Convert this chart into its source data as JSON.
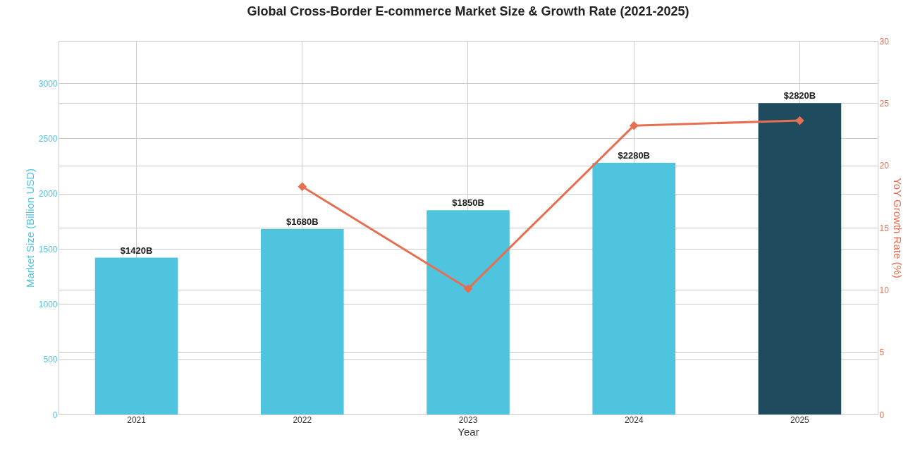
{
  "chart_data": {
    "type": "bar",
    "title": "Global Cross-Border E-commerce Market Size & Growth Rate (2021-2025)",
    "xlabel": "Year",
    "ylabel": "Market Size (Billion USD)",
    "y2label": "YoY Growth Rate (%)",
    "categories": [
      "2021",
      "2022",
      "2023",
      "2024",
      "2025"
    ],
    "series": [
      {
        "colors": [
          "#4fc4df",
          "#4fc4df",
          "#4fc4df",
          "#4fc4df",
          "#1f4b5e"
        ],
        "values": [
          1420,
          1680,
          1850,
          2280,
          2820
        ],
        "value_labels": [
          "$1420B",
          "$1680B",
          "$1850B",
          "$2280B",
          "$2820B"
        ]
      },
      {
        "type": "line",
        "axis": "y2",
        "color": "#e76f51",
        "values": [
          null,
          18.3,
          10.1,
          23.2,
          23.6
        ]
      }
    ],
    "ylim": [
      0,
      3384
    ],
    "yticks": [
      0,
      500,
      1000,
      1500,
      2000,
      2500,
      3000
    ],
    "y2lim": [
      0,
      30
    ],
    "y2ticks": [
      0,
      5,
      10,
      15,
      20,
      25,
      30
    ],
    "grid": true,
    "marker": "diamond",
    "line_style": "solid"
  }
}
